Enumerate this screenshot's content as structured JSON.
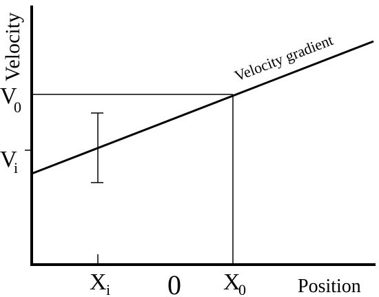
{
  "diagram": {
    "y_axis_label": "Velocity",
    "x_axis_label": "Position",
    "gradient_label": "Velocity gradient",
    "y_ticks": {
      "v0": {
        "base": "V",
        "sub": "0"
      },
      "vi": {
        "base": "V",
        "sub": "i"
      }
    },
    "x_ticks": {
      "xi": {
        "base": "X",
        "sub": "i"
      },
      "zero": "0",
      "x0": {
        "base": "X",
        "sub": "0"
      }
    }
  }
}
